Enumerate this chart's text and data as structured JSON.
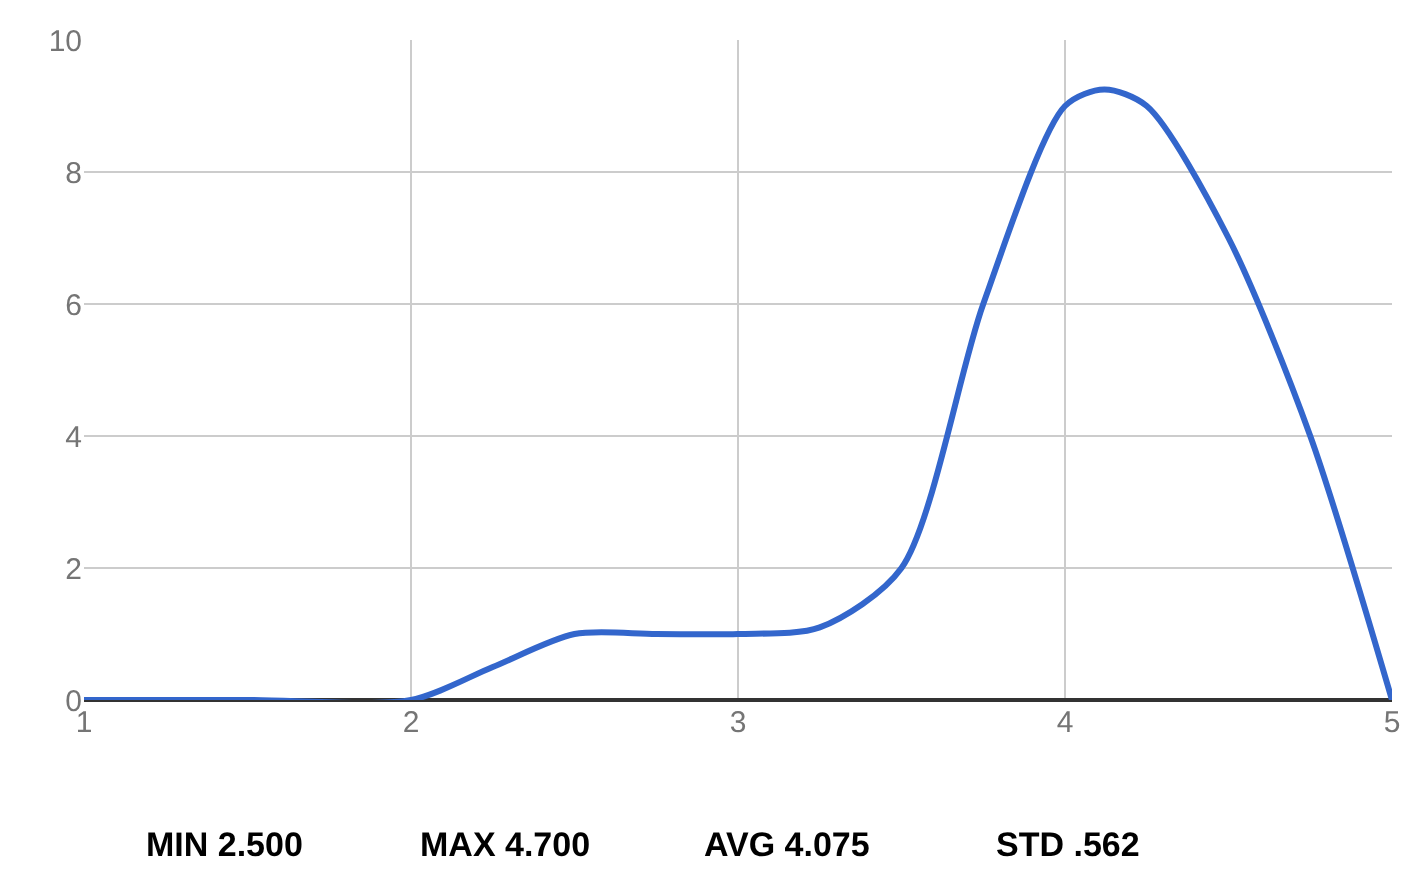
{
  "chart_data": {
    "type": "line",
    "x": [
      1,
      1.5,
      2,
      2.25,
      2.5,
      2.75,
      3,
      3.25,
      3.5,
      3.75,
      4,
      4.12,
      4.25,
      4.5,
      4.75,
      5
    ],
    "series": [
      {
        "color": "#3366cc",
        "values": [
          0,
          0,
          0,
          0.5,
          1,
          1,
          1,
          1.1,
          2,
          6,
          9,
          9.25,
          9,
          7,
          4,
          0
        ]
      }
    ],
    "xlim": [
      1,
      5
    ],
    "xticks": [
      1,
      2,
      3,
      4,
      5
    ],
    "ylim": [
      0,
      10
    ],
    "yticks": [
      0,
      2,
      4,
      6,
      8,
      10
    ],
    "grid": true,
    "marker": "none",
    "line_style": "solid",
    "annotations": [
      "MIN 2.500",
      "MAX 4.700",
      "AVG 4.075",
      "STD .562"
    ]
  }
}
